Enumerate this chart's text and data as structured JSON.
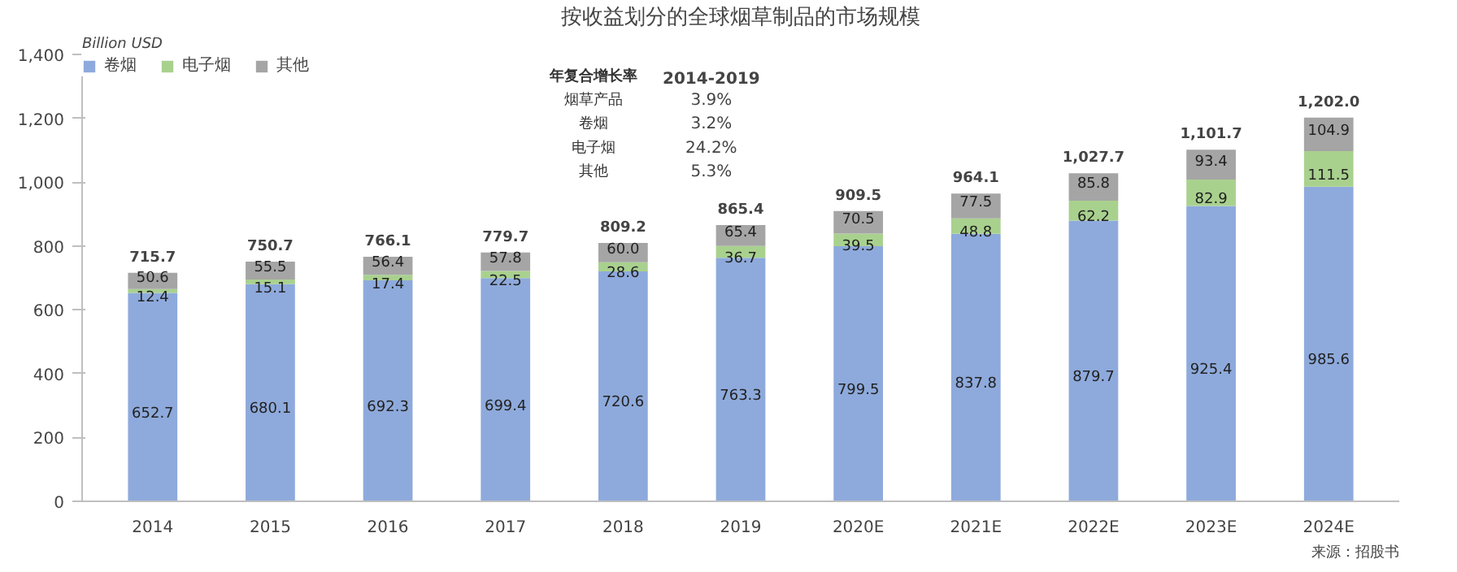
{
  "chart_data": {
    "type": "bar",
    "title": "按收益划分的全球烟草制品的市场规模",
    "ylabel": "Billion USD",
    "categories": [
      "2014",
      "2015",
      "2016",
      "2017",
      "2018",
      "2019",
      "2020E",
      "2021E",
      "2022E",
      "2023E",
      "2024E"
    ],
    "stacked": true,
    "data_labels": true,
    "series": [
      {
        "name": "卷烟",
        "color": "#8eaadc",
        "values": [
          652.7,
          680.1,
          692.3,
          699.4,
          720.6,
          763.3,
          799.5,
          837.8,
          879.7,
          925.4,
          985.6
        ]
      },
      {
        "name": "电子烟",
        "color": "#a9d18e",
        "values": [
          12.4,
          15.1,
          17.4,
          22.5,
          28.6,
          36.7,
          39.5,
          48.8,
          62.2,
          82.9,
          111.5
        ]
      },
      {
        "name": "其他",
        "color": "#a5a5a5",
        "values": [
          50.6,
          55.5,
          56.4,
          57.8,
          60.0,
          65.4,
          70.5,
          77.5,
          85.8,
          93.4,
          104.9
        ],
        "value_labels": [
          "50.6",
          "55.5",
          "56.4",
          "57.8",
          "60.0",
          "65.4",
          "70.5",
          "77.5",
          "85.8",
          "93.4",
          "104.9"
        ]
      }
    ],
    "totals": [
      "715.7",
      "750.7",
      "766.1",
      "779.7",
      "809.2",
      "865.4",
      "909.5",
      "964.1",
      "1,027.7",
      "1,101.7",
      "1,202.0"
    ],
    "ylim": [
      0,
      1400
    ],
    "yticks": [
      0,
      200,
      400,
      600,
      800,
      {
        "value": 1000,
        "label": "1,000"
      },
      {
        "value": 1200,
        "label": "1,200"
      },
      {
        "value": 1400,
        "label": "1,400"
      }
    ],
    "legend": "top left",
    "annotations": [
      "年复合增长率 2014-2019",
      "烟草产品 3.9%",
      "卷烟 3.2%",
      "电子烟 24.2%",
      "其他 5.3%",
      "来源：招股书"
    ]
  }
}
